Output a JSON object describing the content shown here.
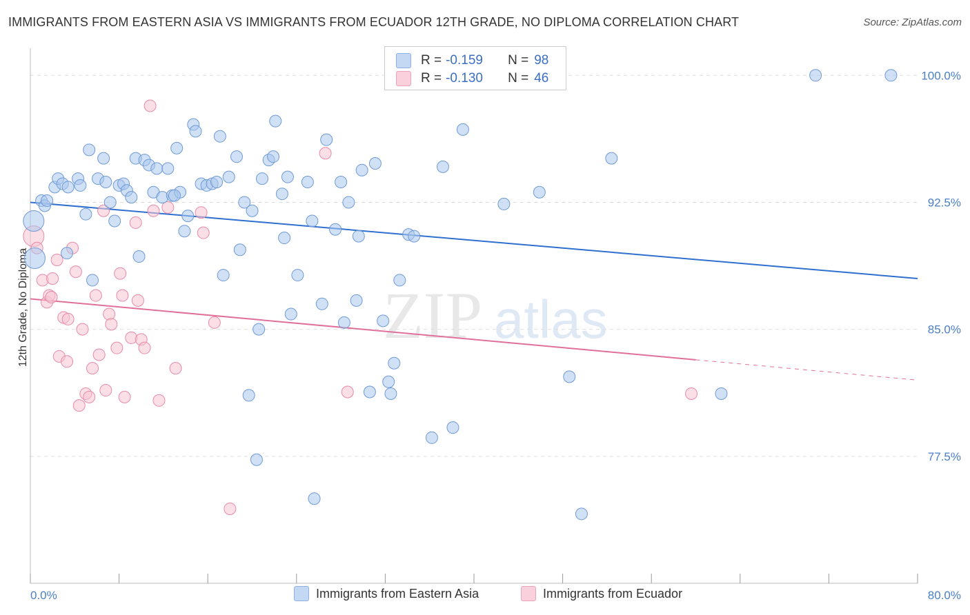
{
  "header": {
    "title": "IMMIGRANTS FROM EASTERN ASIA VS IMMIGRANTS FROM ECUADOR 12TH GRADE, NO DIPLOMA CORRELATION CHART",
    "source": "Source: ZipAtlas.com"
  },
  "watermark": {
    "zip": "ZIP",
    "atlas": "atlas"
  },
  "legend": {
    "rows": [
      {
        "r_label": "R =",
        "r_value": "-0.159",
        "n_label": "N =",
        "n_value": "98",
        "color": "#a9c6ec"
      },
      {
        "r_label": "R =",
        "r_value": "-0.130",
        "n_label": "N =",
        "n_value": "46",
        "color": "#f2b6c8"
      }
    ]
  },
  "bottom_legend": {
    "blue_label": "Immigrants from Eastern Asia",
    "pink_label": "Immigrants from Ecuador"
  },
  "colors": {
    "blue_fill": "#a9c6ec",
    "blue_stroke": "#6f9ad6",
    "blue_line": "#2e6fcf",
    "pink_fill": "#f6c4d3",
    "pink_stroke": "#e98aa8",
    "pink_line": "#e0709a",
    "grid": "#dddddd",
    "tick_text": "#4a7fc8"
  },
  "chart_data": {
    "type": "scatter",
    "title": "IMMIGRANTS FROM EASTERN ASIA VS IMMIGRANTS FROM ECUADOR 12TH GRADE, NO DIPLOMA CORRELATION CHART",
    "xlabel": "",
    "ylabel": "12th Grade, No Diploma",
    "xlim": [
      0,
      80
    ],
    "ylim": [
      70.0,
      101.6
    ],
    "x_tick_labels": [
      "0.0%",
      "80.0%"
    ],
    "y_ticks": [
      77.5,
      85.0,
      92.5,
      100.0
    ],
    "y_tick_labels": [
      "77.5%",
      "85.0%",
      "92.5%",
      "100.0%"
    ],
    "grid": true,
    "legend_position": "top-center",
    "series": [
      {
        "name": "Immigrants from Eastern Asia",
        "R": -0.159,
        "N": 98,
        "trend": {
          "x": [
            0,
            80
          ],
          "y": [
            92.5,
            88.0
          ]
        },
        "points": [
          [
            0.3,
            91.4,
            3
          ],
          [
            0.4,
            89.2,
            3
          ],
          [
            1.0,
            92.6,
            1
          ],
          [
            1.3,
            92.3,
            1
          ],
          [
            1.5,
            92.6,
            1
          ],
          [
            2.2,
            93.4,
            1
          ],
          [
            2.5,
            93.9,
            1
          ],
          [
            2.9,
            93.6,
            1
          ],
          [
            3.4,
            93.4,
            1
          ],
          [
            3.3,
            89.5,
            1
          ],
          [
            4.3,
            93.9,
            1
          ],
          [
            4.5,
            93.5,
            1
          ],
          [
            5.0,
            91.8,
            1
          ],
          [
            5.3,
            95.6,
            1
          ],
          [
            5.6,
            87.9,
            1
          ],
          [
            6.1,
            93.9,
            1
          ],
          [
            6.6,
            95.1,
            1
          ],
          [
            6.8,
            93.7,
            1
          ],
          [
            7.2,
            92.5,
            1
          ],
          [
            7.6,
            91.4,
            1
          ],
          [
            8.0,
            93.5,
            1
          ],
          [
            8.4,
            93.6,
            1
          ],
          [
            8.7,
            93.2,
            1
          ],
          [
            9.1,
            92.8,
            1
          ],
          [
            9.5,
            95.1,
            1
          ],
          [
            9.8,
            89.3,
            1
          ],
          [
            10.3,
            95.0,
            1
          ],
          [
            10.7,
            94.7,
            1
          ],
          [
            11.1,
            93.1,
            1
          ],
          [
            11.4,
            94.5,
            1
          ],
          [
            11.9,
            92.8,
            1
          ],
          [
            12.4,
            94.5,
            1
          ],
          [
            12.8,
            92.9,
            1
          ],
          [
            13.2,
            95.7,
            1
          ],
          [
            13.5,
            93.1,
            1
          ],
          [
            13.9,
            90.8,
            1
          ],
          [
            14.2,
            91.7,
            1
          ],
          [
            14.7,
            97.1,
            1
          ],
          [
            14.9,
            96.7,
            1
          ],
          [
            15.4,
            93.6,
            1
          ],
          [
            15.9,
            93.5,
            1
          ],
          [
            16.4,
            93.6,
            1
          ],
          [
            16.8,
            93.7,
            1
          ],
          [
            17.1,
            96.4,
            1
          ],
          [
            17.4,
            88.2,
            1
          ],
          [
            17.9,
            94.0,
            1
          ],
          [
            18.6,
            95.2,
            1
          ],
          [
            18.9,
            89.7,
            1
          ],
          [
            19.3,
            92.5,
            1
          ],
          [
            20.0,
            92.0,
            1
          ],
          [
            20.6,
            85.0,
            1
          ],
          [
            20.9,
            93.9,
            1
          ],
          [
            21.5,
            95.0,
            1
          ],
          [
            21.9,
            95.2,
            1
          ],
          [
            22.1,
            97.3,
            1
          ],
          [
            22.7,
            93.0,
            1
          ],
          [
            22.9,
            90.4,
            1
          ],
          [
            23.2,
            94.0,
            1
          ],
          [
            23.5,
            85.9,
            1
          ],
          [
            24.1,
            88.2,
            1
          ],
          [
            25.0,
            93.7,
            1
          ],
          [
            25.4,
            91.4,
            1
          ],
          [
            26.3,
            86.5,
            1
          ],
          [
            26.7,
            96.2,
            1
          ],
          [
            27.5,
            90.9,
            1
          ],
          [
            28.0,
            93.7,
            1
          ],
          [
            28.3,
            85.4,
            1
          ],
          [
            28.7,
            92.5,
            1
          ],
          [
            29.4,
            86.7,
            1
          ],
          [
            29.6,
            90.5,
            1
          ],
          [
            29.9,
            94.4,
            1
          ],
          [
            30.6,
            81.3,
            1
          ],
          [
            31.1,
            94.8,
            1
          ],
          [
            31.8,
            85.5,
            1
          ],
          [
            32.3,
            81.9,
            1
          ],
          [
            32.5,
            81.2,
            1
          ],
          [
            32.8,
            83.0,
            1
          ],
          [
            33.3,
            87.9,
            1
          ],
          [
            34.1,
            90.6,
            1
          ],
          [
            34.6,
            90.5,
            1
          ],
          [
            36.2,
            78.6,
            1
          ],
          [
            37.2,
            94.6,
            1
          ],
          [
            38.1,
            79.2,
            1
          ],
          [
            39.0,
            96.8,
            1
          ],
          [
            41.5,
            100.0,
            1
          ],
          [
            42.7,
            92.4,
            1
          ],
          [
            45.9,
            93.1,
            1
          ],
          [
            48.6,
            82.2,
            1
          ],
          [
            49.7,
            74.1,
            1
          ],
          [
            52.4,
            95.1,
            1
          ],
          [
            62.3,
            81.2,
            1
          ],
          [
            70.8,
            100.0,
            1
          ],
          [
            77.6,
            100.0,
            1
          ],
          [
            38.6,
            100.0,
            1
          ],
          [
            19.7,
            81.1,
            1
          ],
          [
            20.4,
            77.3,
            1
          ],
          [
            25.6,
            75.0,
            1
          ],
          [
            13.0,
            92.9,
            1
          ]
        ]
      },
      {
        "name": "Immigrants from Ecuador",
        "R": -0.13,
        "N": 46,
        "trend": {
          "x": [
            0,
            60
          ],
          "y": [
            86.8,
            83.2
          ]
        },
        "trend_dashed": {
          "x": [
            60,
            80
          ],
          "y": [
            83.2,
            82.0
          ]
        },
        "points": [
          [
            0.3,
            90.5,
            3
          ],
          [
            0.6,
            89.8,
            1
          ],
          [
            1.1,
            87.9,
            1
          ],
          [
            1.5,
            86.6,
            1
          ],
          [
            1.7,
            87.0,
            1
          ],
          [
            1.9,
            86.9,
            1
          ],
          [
            2.4,
            89.1,
            1
          ],
          [
            2.6,
            83.4,
            1
          ],
          [
            3.0,
            85.7,
            1
          ],
          [
            3.3,
            83.1,
            1
          ],
          [
            3.4,
            85.6,
            1
          ],
          [
            3.8,
            89.8,
            1
          ],
          [
            4.1,
            88.4,
            1
          ],
          [
            4.4,
            80.5,
            1
          ],
          [
            4.7,
            85.0,
            1
          ],
          [
            5.0,
            81.2,
            1
          ],
          [
            5.3,
            81.0,
            1
          ],
          [
            5.6,
            82.7,
            1
          ],
          [
            5.9,
            87.0,
            1
          ],
          [
            6.2,
            83.5,
            1
          ],
          [
            6.6,
            92.0,
            1
          ],
          [
            6.8,
            81.4,
            1
          ],
          [
            7.1,
            85.9,
            1
          ],
          [
            7.3,
            85.3,
            1
          ],
          [
            7.8,
            83.9,
            1
          ],
          [
            8.1,
            88.3,
            1
          ],
          [
            8.3,
            87.0,
            1
          ],
          [
            8.5,
            81.0,
            1
          ],
          [
            9.1,
            84.5,
            1
          ],
          [
            9.5,
            91.3,
            1
          ],
          [
            9.7,
            86.7,
            1
          ],
          [
            10.0,
            84.4,
            1
          ],
          [
            10.3,
            83.9,
            1
          ],
          [
            10.8,
            98.2,
            1
          ],
          [
            11.1,
            92.0,
            1
          ],
          [
            11.6,
            80.8,
            1
          ],
          [
            12.4,
            92.2,
            1
          ],
          [
            13.1,
            82.7,
            1
          ],
          [
            15.4,
            91.9,
            1
          ],
          [
            15.6,
            90.7,
            1
          ],
          [
            16.6,
            85.4,
            1
          ],
          [
            18.0,
            74.4,
            1
          ],
          [
            26.6,
            95.4,
            1
          ],
          [
            28.6,
            81.3,
            1
          ],
          [
            59.6,
            81.2,
            1
          ],
          [
            2.0,
            88.0,
            1
          ]
        ]
      }
    ]
  }
}
